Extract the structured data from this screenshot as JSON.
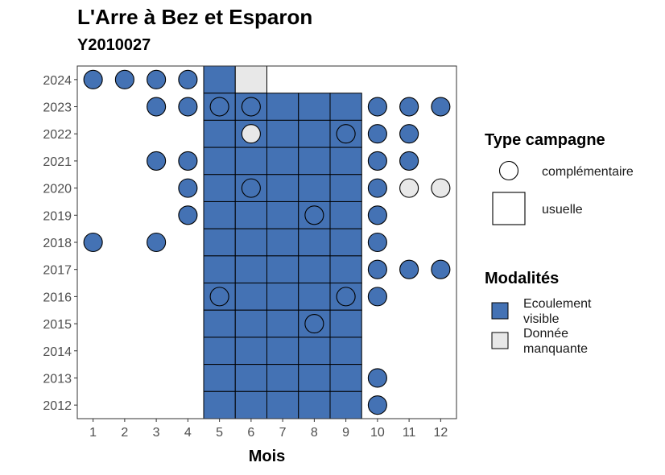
{
  "chart_data": {
    "type": "heatmap",
    "title": "L'Arre à Bez et Esparon",
    "subtitle": "Y2010027",
    "xlabel": "Mois",
    "ylabel": "",
    "x_ticks": [
      "1",
      "2",
      "3",
      "4",
      "5",
      "6",
      "7",
      "8",
      "9",
      "10",
      "11",
      "12"
    ],
    "y_ticks": [
      "2012",
      "2013",
      "2014",
      "2015",
      "2016",
      "2017",
      "2018",
      "2019",
      "2020",
      "2021",
      "2022",
      "2023",
      "2024"
    ],
    "xlim": [
      0.5,
      12.5
    ],
    "ylim": [
      2011.5,
      2024.5
    ],
    "colors": {
      "ecoulement_visible": "#4472b4",
      "donnee_manquante": "#e8e8e8"
    },
    "usuelle": [
      {
        "year": 2024,
        "months": [
          5
        ],
        "modalite": "Ecoulement visible"
      },
      {
        "year": 2024,
        "months": [
          6
        ],
        "modalite": "Donnée manquante"
      },
      {
        "year": 2023,
        "months": [
          5,
          6,
          7,
          8,
          9
        ],
        "modalite": "Ecoulement visible"
      },
      {
        "year": 2022,
        "months": [
          5,
          6,
          7,
          8,
          9
        ],
        "modalite": "Ecoulement visible"
      },
      {
        "year": 2021,
        "months": [
          5,
          6,
          7,
          8,
          9
        ],
        "modalite": "Ecoulement visible"
      },
      {
        "year": 2020,
        "months": [
          5,
          6,
          7,
          8,
          9
        ],
        "modalite": "Ecoulement visible"
      },
      {
        "year": 2019,
        "months": [
          5,
          6,
          7,
          8,
          9
        ],
        "modalite": "Ecoulement visible"
      },
      {
        "year": 2018,
        "months": [
          5,
          6,
          7,
          8,
          9
        ],
        "modalite": "Ecoulement visible"
      },
      {
        "year": 2017,
        "months": [
          5,
          6,
          7,
          8,
          9
        ],
        "modalite": "Ecoulement visible"
      },
      {
        "year": 2016,
        "months": [
          5,
          6,
          7,
          8,
          9
        ],
        "modalite": "Ecoulement visible"
      },
      {
        "year": 2015,
        "months": [
          5,
          6,
          7,
          8,
          9
        ],
        "modalite": "Ecoulement visible"
      },
      {
        "year": 2014,
        "months": [
          5,
          6,
          7,
          8,
          9
        ],
        "modalite": "Ecoulement visible"
      },
      {
        "year": 2013,
        "months": [
          5,
          6,
          7,
          8,
          9
        ],
        "modalite": "Ecoulement visible"
      },
      {
        "year": 2012,
        "months": [
          5,
          6,
          7,
          8,
          9
        ],
        "modalite": "Ecoulement visible"
      }
    ],
    "complementaire": [
      {
        "year": 2024,
        "month": 1,
        "modalite": "Ecoulement visible"
      },
      {
        "year": 2024,
        "month": 2,
        "modalite": "Ecoulement visible"
      },
      {
        "year": 2024,
        "month": 3,
        "modalite": "Ecoulement visible"
      },
      {
        "year": 2024,
        "month": 4,
        "modalite": "Ecoulement visible"
      },
      {
        "year": 2023,
        "month": 3,
        "modalite": "Ecoulement visible"
      },
      {
        "year": 2023,
        "month": 4,
        "modalite": "Ecoulement visible"
      },
      {
        "year": 2023,
        "month": 5,
        "modalite": "Ecoulement visible"
      },
      {
        "year": 2023,
        "month": 6,
        "modalite": "Ecoulement visible"
      },
      {
        "year": 2023,
        "month": 10,
        "modalite": "Ecoulement visible"
      },
      {
        "year": 2023,
        "month": 11,
        "modalite": "Ecoulement visible"
      },
      {
        "year": 2023,
        "month": 12,
        "modalite": "Ecoulement visible"
      },
      {
        "year": 2022,
        "month": 6,
        "modalite": "Donnée manquante"
      },
      {
        "year": 2022,
        "month": 9,
        "modalite": "Ecoulement visible"
      },
      {
        "year": 2022,
        "month": 10,
        "modalite": "Ecoulement visible"
      },
      {
        "year": 2022,
        "month": 11,
        "modalite": "Ecoulement visible"
      },
      {
        "year": 2021,
        "month": 3,
        "modalite": "Ecoulement visible"
      },
      {
        "year": 2021,
        "month": 4,
        "modalite": "Ecoulement visible"
      },
      {
        "year": 2021,
        "month": 10,
        "modalite": "Ecoulement visible"
      },
      {
        "year": 2021,
        "month": 11,
        "modalite": "Ecoulement visible"
      },
      {
        "year": 2020,
        "month": 4,
        "modalite": "Ecoulement visible"
      },
      {
        "year": 2020,
        "month": 6,
        "modalite": "Ecoulement visible"
      },
      {
        "year": 2020,
        "month": 10,
        "modalite": "Ecoulement visible"
      },
      {
        "year": 2020,
        "month": 11,
        "modalite": "Donnée manquante"
      },
      {
        "year": 2020,
        "month": 12,
        "modalite": "Donnée manquante"
      },
      {
        "year": 2019,
        "month": 4,
        "modalite": "Ecoulement visible"
      },
      {
        "year": 2019,
        "month": 8,
        "modalite": "Ecoulement visible"
      },
      {
        "year": 2019,
        "month": 10,
        "modalite": "Ecoulement visible"
      },
      {
        "year": 2018,
        "month": 1,
        "modalite": "Ecoulement visible"
      },
      {
        "year": 2018,
        "month": 3,
        "modalite": "Ecoulement visible"
      },
      {
        "year": 2018,
        "month": 10,
        "modalite": "Ecoulement visible"
      },
      {
        "year": 2017,
        "month": 10,
        "modalite": "Ecoulement visible"
      },
      {
        "year": 2017,
        "month": 11,
        "modalite": "Ecoulement visible"
      },
      {
        "year": 2017,
        "month": 12,
        "modalite": "Ecoulement visible"
      },
      {
        "year": 2016,
        "month": 5,
        "modalite": "Ecoulement visible"
      },
      {
        "year": 2016,
        "month": 9,
        "modalite": "Ecoulement visible"
      },
      {
        "year": 2016,
        "month": 10,
        "modalite": "Ecoulement visible"
      },
      {
        "year": 2015,
        "month": 8,
        "modalite": "Ecoulement visible"
      },
      {
        "year": 2013,
        "month": 10,
        "modalite": "Ecoulement visible"
      },
      {
        "year": 2012,
        "month": 10,
        "modalite": "Ecoulement visible"
      }
    ],
    "legend": {
      "type_title": "Type campagne",
      "type_items": [
        "complémentaire",
        "usuelle"
      ],
      "modalite_title": "Modalités",
      "modalite_items": [
        {
          "line1": "Ecoulement",
          "line2": "visible",
          "color": "#4472b4"
        },
        {
          "line1": "Donnée",
          "line2": "manquante",
          "color": "#e8e8e8"
        }
      ],
      "position": "right"
    }
  }
}
